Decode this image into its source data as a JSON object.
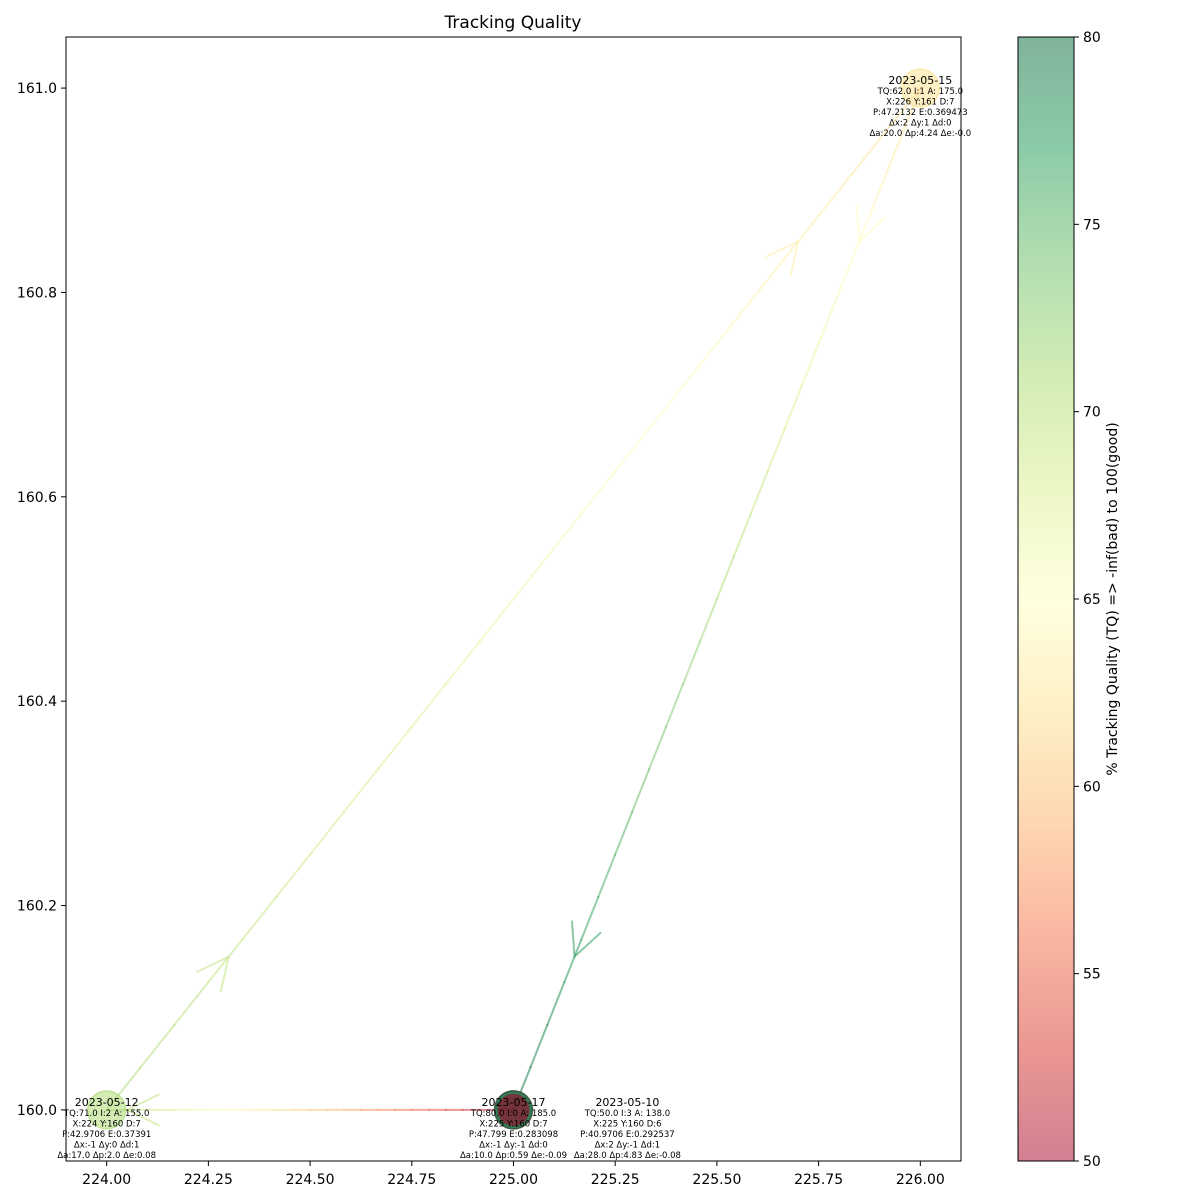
{
  "chart_data": {
    "type": "scatter",
    "title": "Tracking Quality",
    "xlabel": "",
    "ylabel": "",
    "xlim": [
      223.9,
      226.1
    ],
    "ylim": [
      159.95,
      161.05
    ],
    "x_ticks": [
      "224.00",
      "224.25",
      "224.50",
      "224.75",
      "225.00",
      "225.25",
      "225.50",
      "225.75",
      "226.00"
    ],
    "x_tick_values": [
      224.0,
      224.25,
      224.5,
      224.75,
      225.0,
      225.25,
      225.5,
      225.75,
      226.0
    ],
    "y_ticks": [
      "160.0",
      "160.2",
      "160.4",
      "160.6",
      "160.8",
      "161.0"
    ],
    "y_tick_values": [
      160.0,
      160.2,
      160.4,
      160.6,
      160.8,
      161.0
    ],
    "grid": false,
    "colorbar": {
      "label": "% Tracking Quality (TQ) => -inf(bad) to 100(good)",
      "min": 50,
      "max": 80,
      "ticks": [
        "50",
        "55",
        "60",
        "65",
        "70",
        "75",
        "80"
      ],
      "tick_values": [
        50,
        55,
        60,
        65,
        70,
        75,
        80
      ],
      "colormap": "RdYlGn",
      "colors": [
        "#a50026",
        "#d73027",
        "#f46d43",
        "#fdae61",
        "#fee08b",
        "#ffffbf",
        "#d9ef8b",
        "#a6d96a",
        "#66bd63",
        "#1a9850",
        "#006837"
      ]
    },
    "points": [
      {
        "date": "2023-05-10",
        "x": 225.0,
        "y": 160.0,
        "tq": 50.0,
        "lines": [
          "TQ:50.0 I:3 A: 138.0",
          "X:225 Y:160 D:6",
          "P:40.9706 E:0.292537",
          "Δx:2 Δy:-1 Δd:1",
          "Δa:28.0 Δp:4.83 Δe:-0.08"
        ]
      },
      {
        "date": "2023-05-12",
        "x": 224.0,
        "y": 160.0,
        "tq": 71.0,
        "lines": [
          "TQ:71.0 I:2 A: 155.0",
          "X:224 Y:160 D:7",
          "P:42.9706 E:0.37391",
          "Δx:-1 Δy:0 Δd:1",
          "Δa:17.0 Δp:2.0 Δe:0.08"
        ]
      },
      {
        "date": "2023-05-15",
        "x": 226.0,
        "y": 161.0,
        "tq": 62.0,
        "lines": [
          "TQ:62.0 I:1 A: 175.0",
          "X:226 Y:161 D:7",
          "P:47.2132 E:0.369473",
          "Δx:2 Δy:1 Δd:0",
          "Δa:20.0 Δp:4.24 Δe:-0.0"
        ]
      },
      {
        "date": "2023-05-17",
        "x": 225.0,
        "y": 160.0,
        "tq": 80.0,
        "lines": [
          "TQ:80.0 I:0 A: 185.0",
          "X:225 Y:160 D:7",
          "P:47.799 E:0.283098",
          "Δx:-1 Δy:-1 Δd:0",
          "Δa:10.0 Δp:0.59 Δe:-0.09"
        ]
      }
    ],
    "path_order": [
      "2023-05-10",
      "2023-05-12",
      "2023-05-15",
      "2023-05-17"
    ]
  }
}
